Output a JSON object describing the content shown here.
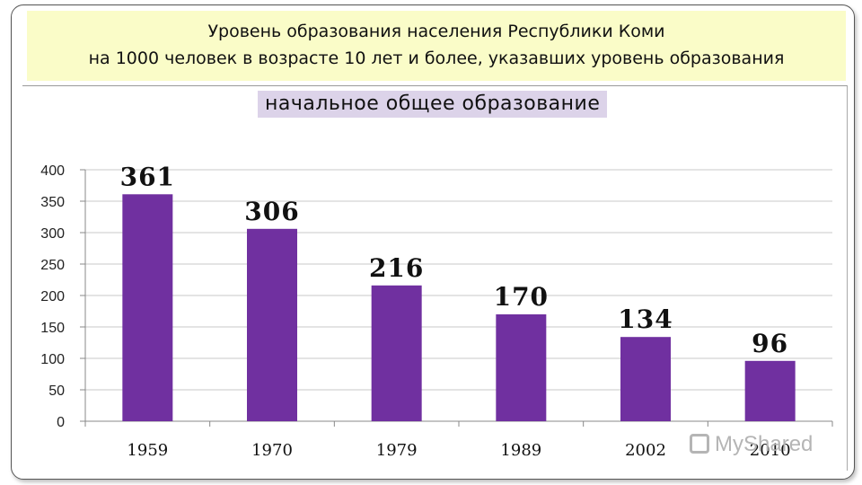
{
  "title": {
    "line1": "Уровень образования населения Республики Коми",
    "line2": "на 1000 человек в возрасте 10 лет и более, указавших уровень образования"
  },
  "watermark": "MyShared",
  "colors": {
    "bar": "#7030a0",
    "title_bg": "#fafcc8",
    "subtitle_bg": "#dcd3e9"
  },
  "chart_data": {
    "type": "bar",
    "title": "начальное общее образование",
    "categories": [
      "1959",
      "1970",
      "1979",
      "1989",
      "2002",
      "2010"
    ],
    "values": [
      361,
      306,
      216,
      170,
      134,
      96
    ],
    "data_labels": [
      "361",
      "306",
      "216",
      "170",
      "134",
      "96"
    ],
    "ylim": [
      0,
      400
    ],
    "yticks": [
      "0",
      "50",
      "100",
      "150",
      "200",
      "250",
      "300",
      "350",
      "400"
    ],
    "grid": true,
    "legend": "none"
  }
}
